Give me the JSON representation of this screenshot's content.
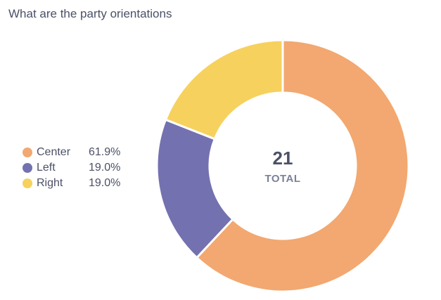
{
  "title": "What are the party orientations",
  "chart_data": {
    "type": "pie",
    "variant": "donut",
    "title": "What are the party orientations",
    "total": {
      "value": "21",
      "label": "TOTAL"
    },
    "series": [
      {
        "name": "Center",
        "value": 61.9,
        "label": "61.9%",
        "color": "#f2a870"
      },
      {
        "name": "Left",
        "value": 19.0,
        "label": "19.0%",
        "color": "#7471b0"
      },
      {
        "name": "Right",
        "value": 19.0,
        "label": "19.0%",
        "color": "#f7d15e"
      }
    ],
    "legend_position": "left"
  }
}
